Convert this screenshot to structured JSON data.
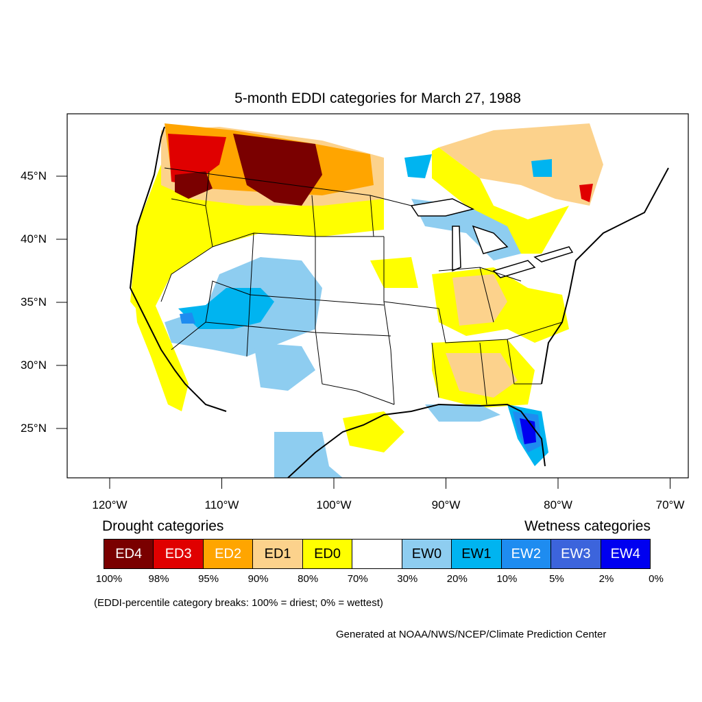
{
  "title": "5-month EDDI categories for March 27, 1988",
  "lat_ticks": [
    {
      "label": "45°N",
      "lat": 45
    },
    {
      "label": "40°N",
      "lat": 40
    },
    {
      "label": "35°N",
      "lat": 35
    },
    {
      "label": "30°N",
      "lat": 30
    },
    {
      "label": "25°N",
      "lat": 25
    }
  ],
  "lon_ticks": [
    {
      "label": "120°W",
      "lon": -120
    },
    {
      "label": "110°W",
      "lon": -110
    },
    {
      "label": "100°W",
      "lon": -100
    },
    {
      "label": "90°W",
      "lon": -90
    },
    {
      "label": "80°W",
      "lon": -80
    },
    {
      "label": "70°W",
      "lon": -70
    }
  ],
  "legend": {
    "drought_heading": "Drought categories",
    "wetness_heading": "Wetness categories",
    "categories": [
      {
        "label": "ED4",
        "color": "#7a0000",
        "text_color": "#ffffff"
      },
      {
        "label": "ED3",
        "color": "#e00000",
        "text_color": "#ffffff"
      },
      {
        "label": "ED2",
        "color": "#ffa500",
        "text_color": "#ffffff"
      },
      {
        "label": "ED1",
        "color": "#fcd28c",
        "text_color": "#000000"
      },
      {
        "label": "ED0",
        "color": "#ffff00",
        "text_color": "#000000"
      },
      {
        "label": "",
        "color": "#ffffff",
        "text_color": "#000000"
      },
      {
        "label": "EW0",
        "color": "#8ecdf0",
        "text_color": "#000000"
      },
      {
        "label": "EW1",
        "color": "#00b4f0",
        "text_color": "#000000"
      },
      {
        "label": "EW2",
        "color": "#1e8cf0",
        "text_color": "#ffffff"
      },
      {
        "label": "EW3",
        "color": "#3c64dc",
        "text_color": "#ffffff"
      },
      {
        "label": "EW4",
        "color": "#0000f0",
        "text_color": "#ffffff"
      }
    ],
    "breaks": [
      "100%",
      "98%",
      "95%",
      "90%",
      "80%",
      "70%",
      "30%",
      "20%",
      "10%",
      "5%",
      "2%",
      "0%"
    ],
    "note": "(EDDI-percentile category breaks: 100% = driest; 0% = wettest)"
  },
  "credit": "Generated at NOAA/NWS/NCEP/Climate Prediction Center",
  "map_regions": [
    {
      "name": "northern-plains-drought",
      "category": "ED4"
    },
    {
      "name": "pacific-northwest-drought",
      "category": "ED3"
    },
    {
      "name": "northern-rockies-drought",
      "category": "ED2"
    },
    {
      "name": "ohio-valley-drought",
      "category": "ED1"
    },
    {
      "name": "southeast-drought",
      "category": "ED1"
    },
    {
      "name": "four-corners-wetness",
      "category": "EW1"
    },
    {
      "name": "florida-wetness",
      "category": "EW4"
    },
    {
      "name": "south-texas-wetness",
      "category": "EW0"
    }
  ]
}
